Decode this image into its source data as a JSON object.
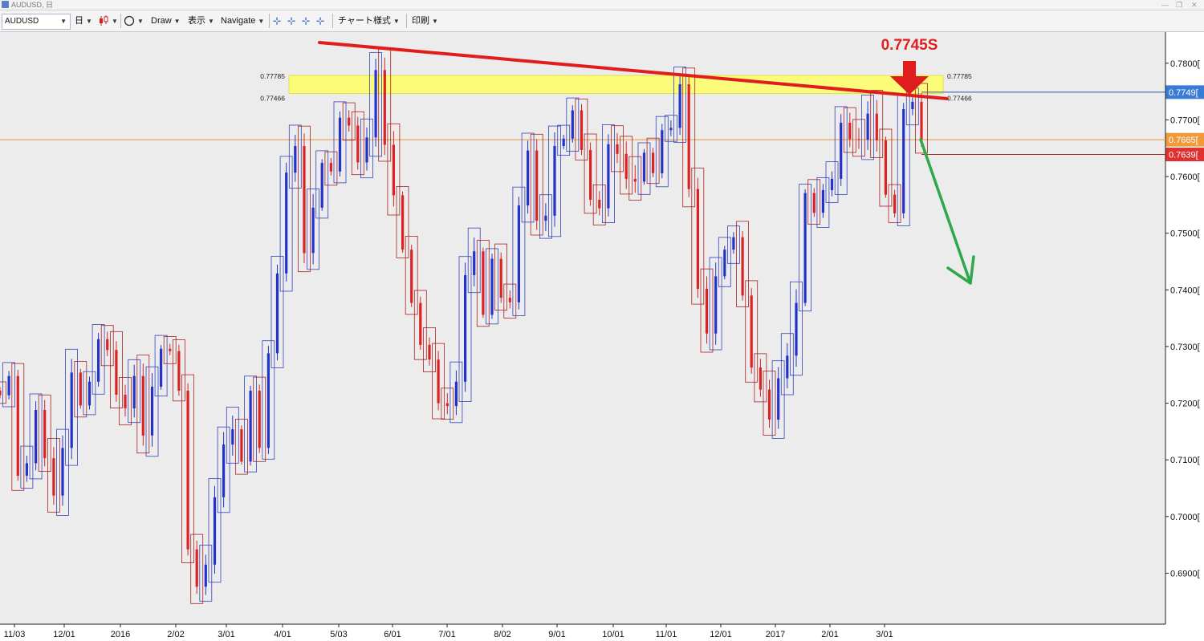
{
  "window": {
    "title": "AUDUSD, 日"
  },
  "toolbar": {
    "symbol": "AUDUSD",
    "timeframe": "日",
    "draw": "Draw",
    "view": "表示",
    "navigate": "Navigate",
    "chart_style": "チャート様式",
    "print": "印刷"
  },
  "chart_data": {
    "type": "candlestick",
    "symbol": "AUDUSD",
    "ylim": [
      0.681,
      0.7855
    ],
    "y_ticks": [
      "0.7800",
      "0.7700",
      "0.7600",
      "0.7500",
      "0.7400",
      "0.7300",
      "0.7200",
      "0.7100",
      "0.7000",
      "0.6900"
    ],
    "x_ticks": [
      "11/03",
      "12/01",
      "2016",
      "2/02",
      "3/01",
      "4/01",
      "5/03",
      "6/01",
      "7/01",
      "8/02",
      "9/01",
      "10/01",
      "11/01",
      "12/01",
      "2017",
      "2/01",
      "3/01"
    ],
    "candles_close_path": [
      0.7214,
      0.7248,
      0.7072,
      0.7094,
      0.7188,
      0.7103,
      0.7037,
      0.7121,
      0.7254,
      0.7196,
      0.7238,
      0.7313,
      0.7294,
      0.7215,
      0.7191,
      0.7248,
      0.7143,
      0.7229,
      0.7296,
      0.7292,
      0.7222,
      0.6942,
      0.6876,
      0.6915,
      0.7034,
      0.7127,
      0.7154,
      0.7097,
      0.7222,
      0.7121,
      0.7288,
      0.7429,
      0.7607,
      0.7654,
      0.7465,
      0.7545,
      0.7624,
      0.7609,
      0.7704,
      0.769,
      0.7625,
      0.7669,
      0.7788,
      0.7656,
      0.7567,
      0.7471,
      0.7377,
      0.7303,
      0.7277,
      0.72,
      0.7195,
      0.7238,
      0.7426,
      0.7468,
      0.7356,
      0.7455,
      0.7386,
      0.7378,
      0.7549,
      0.7646,
      0.7522,
      0.7531,
      0.7654,
      0.7667,
      0.7717,
      0.7647,
      0.7559,
      0.7544,
      0.7657,
      0.764,
      0.7596,
      0.7591,
      0.7642,
      0.7606,
      0.7682,
      0.7686,
      0.7763,
      0.7578,
      0.7402,
      0.7323,
      0.7424,
      0.7471,
      0.7493,
      0.739,
      0.7263,
      0.7224,
      0.7171,
      0.7244,
      0.7284,
      0.7377,
      0.7571,
      0.7536,
      0.7576,
      0.7596,
      0.7695,
      0.7666,
      0.7665,
      0.7711,
      0.7664,
      0.7568,
      0.7535,
      0.7719,
      0.7732,
      0.7665
    ],
    "current_prices": [
      {
        "label": "0.7749[",
        "color": "#3a7bd5"
      },
      {
        "label": "0.7665[",
        "color": "#f09a3a"
      },
      {
        "label": "0.7639[",
        "color": "#e03030"
      }
    ],
    "annotations": {
      "resistance_zone": {
        "upper_label": "0.77785",
        "lower_label": "0.77466",
        "upper": 0.77785,
        "lower": 0.77466,
        "color": "#ffff66"
      },
      "sell_level_text": "0.7745S",
      "trendline_color": "#e01c1c",
      "arrow_down_color": "#e01c1c",
      "arrow_forecast_color": "#2ea84a",
      "candle_up_color": "#2233cc",
      "candle_down_color": "#dd2222",
      "box_up_color": "#3344bb",
      "box_down_color": "#aa2222"
    }
  }
}
